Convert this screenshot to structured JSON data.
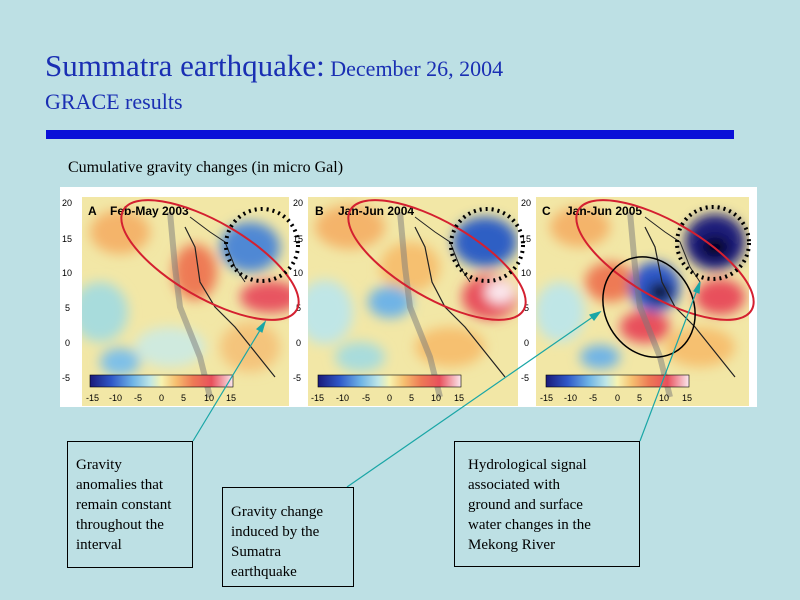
{
  "title": {
    "main": "Summatra earthquake:",
    "date": " December 26, 2004",
    "subtitle": "GRACE results"
  },
  "figure": {
    "caption": "Cumulative gravity changes (in micro Gal)",
    "caption_close": ")",
    "panels": [
      {
        "letter": "A",
        "period": "Feb-May 2003"
      },
      {
        "letter": "B",
        "period": "Jan-Jun 2004"
      },
      {
        "letter": "C",
        "period": "Jan-Jun 2005"
      }
    ],
    "lat_ticks": [
      "20",
      "15",
      "10",
      "5",
      "0",
      "-5"
    ],
    "colorbar_ticks": [
      "-15",
      "-10",
      "-5",
      "0",
      "5",
      "10",
      "15"
    ]
  },
  "callouts": {
    "left": [
      "Gravity",
      "anomalies that",
      "remain constant",
      "throughout the",
      "interval"
    ],
    "middle": [
      "Gravity change",
      "induced by the",
      "Sumatra",
      "earthquake"
    ],
    "right": [
      "Hydrological signal",
      "associated with",
      "ground and surface",
      "water changes in the",
      "Mekong River"
    ]
  },
  "colors": {
    "title": "#1a2fb3",
    "divider": "#0a10d8",
    "background": "#bde0e4",
    "ellipse_red": "#d42030",
    "arrow": "#1aa6a6"
  }
}
